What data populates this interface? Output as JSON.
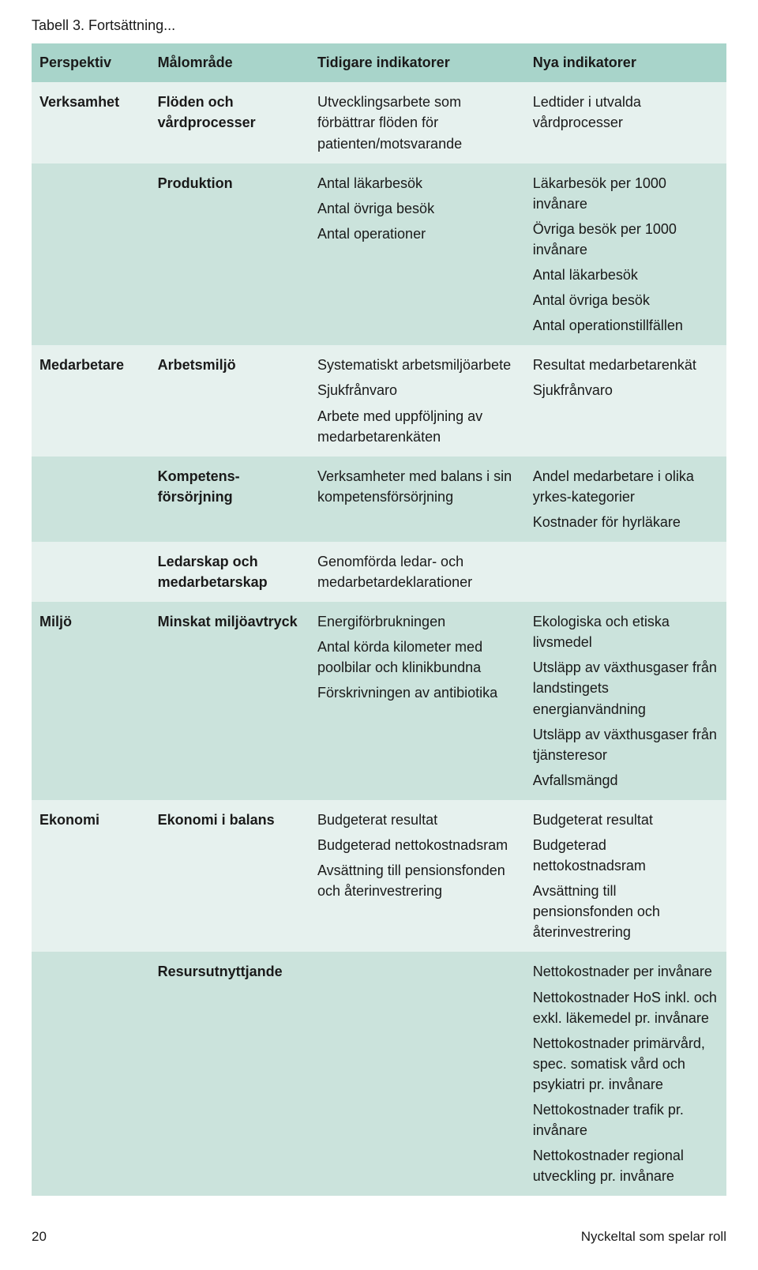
{
  "caption": "Tabell 3. Fortsättning...",
  "headers": {
    "c1": "Perspektiv",
    "c2": "Målområde",
    "c3": "Tidigare indikatorer",
    "c4": "Nya indikatorer"
  },
  "rows": [
    {
      "band": "light",
      "c1": "Verksamhet",
      "c2": "Flöden och vårdprocesser",
      "c3": [
        "Utvecklingsarbete som förbättrar flöden för patienten/motsvarande"
      ],
      "c4": [
        "Ledtider i utvalda vårdprocesser"
      ]
    },
    {
      "band": "dark",
      "c1": "",
      "c2": "Produktion",
      "c3": [
        "Antal läkarbesök",
        "Antal övriga besök",
        "Antal operationer"
      ],
      "c4": [
        "Läkarbesök per 1000 invånare",
        "Övriga besök per 1000 invånare",
        "Antal läkarbesök",
        "Antal övriga besök",
        "Antal operationstillfällen"
      ]
    },
    {
      "band": "light",
      "c1": "Medarbetare",
      "c2": "Arbetsmiljö",
      "c3": [
        "Systematiskt arbetsmiljöarbete",
        "Sjukfrånvaro",
        "Arbete med uppföljning av medarbetarenkäten"
      ],
      "c4": [
        "Resultat medarbetarenkät",
        "Sjukfrånvaro"
      ]
    },
    {
      "band": "dark",
      "c1": "",
      "c2": "Kompetens-försörjning",
      "c3": [
        "Verksamheter med balans i sin kompetensförsörjning"
      ],
      "c4": [
        "Andel medarbetare i olika yrkes-kategorier",
        "Kostnader för hyrläkare"
      ]
    },
    {
      "band": "light",
      "c1": "",
      "c2": "Ledarskap och medarbetarskap",
      "c3": [
        "Genomförda ledar- och medarbetardeklarationer"
      ],
      "c4": []
    },
    {
      "band": "dark",
      "c1": "Miljö",
      "c2": "Minskat miljöavtryck",
      "c3": [
        "Energiförbrukningen",
        "Antal körda kilometer med poolbilar och klinikbundna",
        "Förskrivningen av antibiotika"
      ],
      "c4": [
        "Ekologiska och etiska livsmedel",
        "Utsläpp av växthusgaser från landstingets energianvändning",
        "Utsläpp av växthusgaser från tjänsteresor",
        "Avfallsmängd"
      ]
    },
    {
      "band": "light",
      "c1": "Ekonomi",
      "c2": "Ekonomi i balans",
      "c3": [
        "Budgeterat resultat",
        "Budgeterad nettokostnadsram",
        "Avsättning till pensionsfonden och återinvestrering"
      ],
      "c4": [
        "Budgeterat resultat",
        "Budgeterad nettokostnadsram",
        "Avsättning till pensionsfonden och återinvestrering"
      ]
    },
    {
      "band": "dark",
      "c1": "",
      "c2": "Resursutnyttjande",
      "c3": [],
      "c4": [
        "Nettokostnader per invånare",
        "Nettokostnader HoS inkl. och exkl. läkemedel pr. invånare",
        "Nettokostnader primärvård, spec. somatisk vård och psykiatri pr. invånare",
        "Nettokostnader trafik pr. invånare",
        "Nettokostnader regional utveckling pr. invånare"
      ]
    }
  ],
  "footer": {
    "page": "20",
    "title": "Nyckeltal som spelar roll"
  },
  "colors": {
    "header_bg": "#a8d4ca",
    "light_bg": "#e6f1ee",
    "dark_bg": "#cbe3dc",
    "page_bg": "#ffffff",
    "text": "#1a1a1a"
  }
}
